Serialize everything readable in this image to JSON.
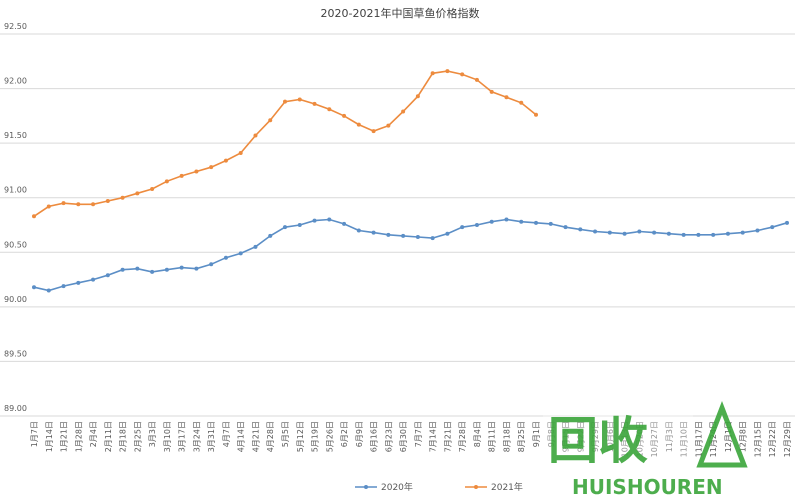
{
  "chart_data": {
    "type": "line",
    "title": "2020-2021年中国草鱼价格指数",
    "categories": [
      "1月7日",
      "1月14日",
      "1月21日",
      "1月28日",
      "2月4日",
      "2月11日",
      "2月18日",
      "2月25日",
      "3月3日",
      "3月10日",
      "3月17日",
      "3月24日",
      "3月31日",
      "4月7日",
      "4月14日",
      "4月21日",
      "4月28日",
      "5月5日",
      "5月12日",
      "5月19日",
      "5月26日",
      "6月2日",
      "6月9日",
      "6月16日",
      "6月23日",
      "6月30日",
      "7月7日",
      "7月14日",
      "7月21日",
      "7月28日",
      "8月4日",
      "8月11日",
      "8月18日",
      "8月25日",
      "9月1日",
      "9月8日",
      "9月15日",
      "9月22日",
      "9月29日",
      "10月6日",
      "10月13日",
      "10月20日",
      "10月27日",
      "11月3日",
      "11月10日",
      "11月17日",
      "11月24日",
      "12月1日",
      "12月8日",
      "12月15日",
      "12月22日",
      "12月29日"
    ],
    "series": [
      {
        "name": "2020年",
        "color": "#5b8ec6",
        "values": [
          90.18,
          90.15,
          90.19,
          90.22,
          90.25,
          90.29,
          90.34,
          90.35,
          90.32,
          90.34,
          90.36,
          90.35,
          90.39,
          90.45,
          90.49,
          90.55,
          90.65,
          90.73,
          90.75,
          90.79,
          90.8,
          90.76,
          90.7,
          90.68,
          90.66,
          90.65,
          90.64,
          90.63,
          90.67,
          90.73,
          90.75,
          90.78,
          90.8,
          90.78,
          90.77,
          90.76,
          90.73,
          90.71,
          90.69,
          90.68,
          90.67,
          90.69,
          90.68,
          90.67,
          90.66,
          90.66,
          90.66,
          90.67,
          90.68,
          90.7,
          90.73,
          90.77
        ]
      },
      {
        "name": "2021年",
        "color": "#ed8b3e",
        "values": [
          90.83,
          90.92,
          90.95,
          90.94,
          90.94,
          90.97,
          91.0,
          91.04,
          91.08,
          91.15,
          91.2,
          91.24,
          91.28,
          91.34,
          91.41,
          91.57,
          91.71,
          91.88,
          91.9,
          91.86,
          91.81,
          91.75,
          91.67,
          91.61,
          91.66,
          91.79,
          91.93,
          92.14,
          92.16,
          92.13,
          92.08,
          91.97,
          91.92,
          91.87,
          91.76,
          null,
          null,
          null,
          null,
          null,
          null,
          null,
          null,
          null,
          null,
          null,
          null,
          null,
          null,
          null,
          null,
          null
        ]
      }
    ],
    "ylim": [
      89.0,
      92.5
    ],
    "yticks": [
      {
        "value": 89.0,
        "label": "89.00"
      },
      {
        "value": 89.5,
        "label": "89.50"
      },
      {
        "value": 90.0,
        "label": "90.00"
      },
      {
        "value": 90.5,
        "label": "90.50"
      },
      {
        "value": 91.0,
        "label": "91.00"
      },
      {
        "value": 91.5,
        "label": "91.50"
      },
      {
        "value": 92.0,
        "label": "92.00"
      },
      {
        "value": 92.5,
        "label": "92.50"
      }
    ],
    "grid": true,
    "legend": "bottom",
    "watermark": [
      "回收",
      "HUISHOUREN"
    ]
  }
}
